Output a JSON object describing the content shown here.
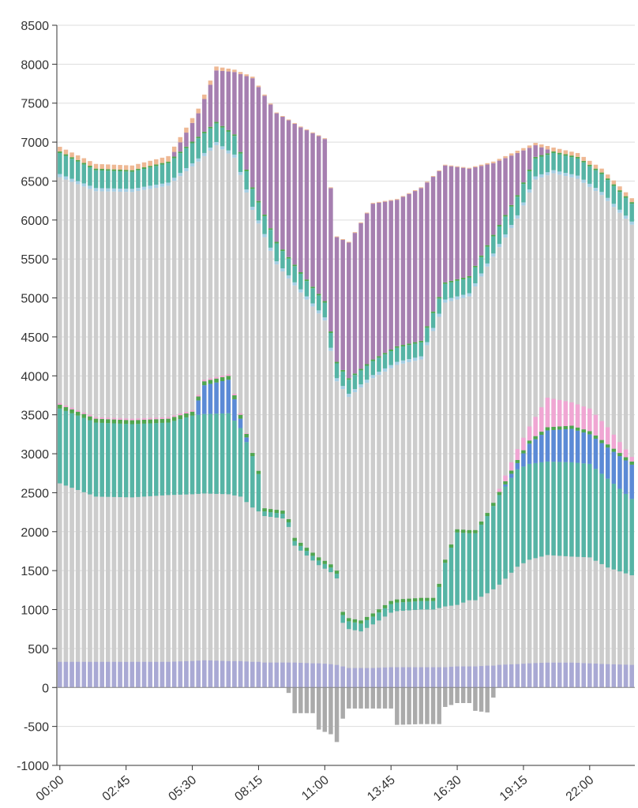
{
  "chart_data": [
    {
      "type": "bar",
      "stacked": true,
      "ylim": [
        -1000,
        8500
      ],
      "yticks": [
        -1000,
        -500,
        0,
        500,
        1000,
        1500,
        2000,
        2500,
        3000,
        3500,
        4000,
        4500,
        5000,
        5500,
        6000,
        6500,
        7000,
        7500,
        8000,
        8500
      ],
      "xtick_labels": [
        "00:00",
        "02:45",
        "05:30",
        "08:15",
        "11:00",
        "13:45",
        "16:30",
        "19:15",
        "22:00"
      ],
      "xtick_every": 11,
      "bar_count": 96,
      "grid": true,
      "legend": "none",
      "colors": {
        "base": "#a9a9d4",
        "gray": "#cccccc",
        "light_blue": "#a6cee3",
        "teal": "#56b4a5",
        "blue": "#5b8ad6",
        "green": "#4fa64f",
        "pink": "#f0a6d3",
        "purple": "#a67fb0",
        "peach": "#eeb894",
        "red": "#e3848c",
        "negative": "#aaaaaa"
      },
      "charts": [
        {
          "name": "upper-chart",
          "keyframes": [
            {
              "t": 0,
              "base": 320,
              "gray": 6230,
              "light_blue": 40,
              "teal": 270,
              "green": 20,
              "purple": 0,
              "peach": 60
            },
            {
              "t": 6,
              "base": 320,
              "gray": 6050,
              "light_blue": 40,
              "teal": 230,
              "green": 20,
              "purple": 0,
              "peach": 60
            },
            {
              "t": 12,
              "base": 330,
              "gray": 6030,
              "light_blue": 40,
              "teal": 220,
              "green": 20,
              "purple": 0,
              "peach": 60
            },
            {
              "t": 18,
              "base": 330,
              "gray": 6110,
              "light_blue": 40,
              "teal": 250,
              "green": 20,
              "purple": 0,
              "peach": 70
            },
            {
              "t": 23,
              "base": 350,
              "gray": 6400,
              "light_blue": 40,
              "teal": 260,
              "green": 20,
              "purple": 300,
              "peach": 60
            },
            {
              "t": 26,
              "base": 340,
              "gray": 6620,
              "light_blue": 40,
              "teal": 240,
              "green": 20,
              "purple": 660,
              "peach": 50
            },
            {
              "t": 29,
              "base": 330,
              "gray": 6470,
              "light_blue": 40,
              "teal": 240,
              "green": 20,
              "purple": 800,
              "peach": 30
            },
            {
              "t": 32,
              "base": 330,
              "gray": 5800,
              "light_blue": 40,
              "teal": 230,
              "green": 20,
              "purple": 1400,
              "peach": 20
            },
            {
              "t": 36,
              "base": 330,
              "gray": 5100,
              "light_blue": 40,
              "teal": 230,
              "green": 20,
              "purple": 1650,
              "peach": 10
            },
            {
              "t": 40,
              "base": 320,
              "gray": 4750,
              "light_blue": 40,
              "teal": 200,
              "green": 20,
              "purple": 1860,
              "peach": 10
            },
            {
              "t": 44,
              "base": 310,
              "gray": 4400,
              "light_blue": 40,
              "teal": 190,
              "green": 20,
              "purple": 2080,
              "peach": 10
            },
            {
              "t": 46,
              "base": 280,
              "gray": 3650,
              "light_blue": 40,
              "teal": 190,
              "green": 20,
              "purple": 1600,
              "peach": 10
            },
            {
              "t": 48,
              "base": 260,
              "gray": 3470,
              "light_blue": 40,
              "teal": 180,
              "green": 20,
              "purple": 1740,
              "peach": 10
            },
            {
              "t": 52,
              "base": 270,
              "gray": 3700,
              "light_blue": 40,
              "teal": 180,
              "green": 20,
              "purple": 2000,
              "peach": 10
            },
            {
              "t": 56,
              "base": 280,
              "gray": 3860,
              "light_blue": 40,
              "teal": 180,
              "green": 20,
              "purple": 1880,
              "peach": 10
            },
            {
              "t": 60,
              "base": 290,
              "gray": 3920,
              "light_blue": 40,
              "teal": 180,
              "green": 20,
              "purple": 1960,
              "peach": 10
            },
            {
              "t": 64,
              "base": 300,
              "gray": 4640,
              "light_blue": 40,
              "teal": 200,
              "green": 20,
              "purple": 1500,
              "peach": 10
            },
            {
              "t": 68,
              "base": 300,
              "gray": 4720,
              "light_blue": 40,
              "teal": 200,
              "green": 20,
              "purple": 1380,
              "peach": 10
            },
            {
              "t": 72,
              "base": 300,
              "gray": 5230,
              "light_blue": 40,
              "teal": 220,
              "green": 20,
              "purple": 920,
              "peach": 20
            },
            {
              "t": 76,
              "base": 320,
              "gray": 5700,
              "light_blue": 40,
              "teal": 240,
              "green": 20,
              "purple": 540,
              "peach": 30
            },
            {
              "t": 79,
              "base": 320,
              "gray": 6200,
              "light_blue": 40,
              "teal": 230,
              "green": 20,
              "purple": 150,
              "peach": 30
            },
            {
              "t": 82,
              "base": 320,
              "gray": 6280,
              "light_blue": 40,
              "teal": 220,
              "green": 20,
              "purple": 0,
              "peach": 50
            },
            {
              "t": 86,
              "base": 320,
              "gray": 6210,
              "light_blue": 40,
              "teal": 220,
              "green": 20,
              "purple": 0,
              "peach": 50
            },
            {
              "t": 90,
              "base": 300,
              "gray": 6020,
              "light_blue": 40,
              "teal": 230,
              "green": 20,
              "purple": 0,
              "peach": 50
            },
            {
              "t": 95,
              "base": 300,
              "gray": 5640,
              "light_blue": 40,
              "teal": 230,
              "green": 20,
              "purple": 0,
              "peach": 50
            }
          ]
        },
        {
          "name": "lower-chart",
          "keyframes": [
            {
              "t": 0,
              "base": 330,
              "gray": 2290,
              "teal": 960,
              "blue": 0,
              "green": 50,
              "pink": 20,
              "negative": 0
            },
            {
              "t": 6,
              "base": 330,
              "gray": 2120,
              "teal": 950,
              "blue": 0,
              "green": 50,
              "pink": 20,
              "negative": 0
            },
            {
              "t": 12,
              "base": 330,
              "gray": 2110,
              "teal": 940,
              "blue": 0,
              "green": 50,
              "pink": 20,
              "negative": 0
            },
            {
              "t": 18,
              "base": 330,
              "gray": 2140,
              "teal": 930,
              "blue": 0,
              "green": 50,
              "pink": 20,
              "negative": 0
            },
            {
              "t": 22,
              "base": 340,
              "gray": 2140,
              "teal": 1010,
              "blue": 0,
              "green": 50,
              "pink": 20,
              "negative": 0
            },
            {
              "t": 24,
              "base": 350,
              "gray": 2140,
              "teal": 1020,
              "blue": 370,
              "green": 50,
              "pink": 20,
              "negative": 0
            },
            {
              "t": 28,
              "base": 340,
              "gray": 2140,
              "teal": 1040,
              "blue": 430,
              "green": 50,
              "pink": 20,
              "negative": 0
            },
            {
              "t": 30,
              "base": 340,
              "gray": 2110,
              "teal": 880,
              "blue": 120,
              "green": 50,
              "pink": 20,
              "negative": 0
            },
            {
              "t": 32,
              "base": 330,
              "gray": 1980,
              "teal": 660,
              "blue": 0,
              "green": 40,
              "pink": 0,
              "negative": 0
            },
            {
              "t": 33,
              "base": 330,
              "gray": 1930,
              "teal": 480,
              "blue": 0,
              "green": 40,
              "pink": 0,
              "negative": 0
            },
            {
              "t": 34,
              "base": 320,
              "gray": 1880,
              "teal": 60,
              "blue": 0,
              "green": 40,
              "pink": 0,
              "negative": 0
            },
            {
              "t": 37,
              "base": 320,
              "gray": 1850,
              "teal": 60,
              "blue": 0,
              "green": 40,
              "pink": 0,
              "negative": 0
            },
            {
              "t": 38,
              "base": 320,
              "gray": 1740,
              "teal": 60,
              "blue": 0,
              "green": 40,
              "pink": 0,
              "negative": -70
            },
            {
              "t": 39,
              "base": 320,
              "gray": 1500,
              "teal": 60,
              "blue": 0,
              "green": 40,
              "pink": 0,
              "negative": -330
            },
            {
              "t": 42,
              "base": 310,
              "gray": 1320,
              "teal": 60,
              "blue": 0,
              "green": 40,
              "pink": 0,
              "negative": -330
            },
            {
              "t": 43,
              "base": 310,
              "gray": 1260,
              "teal": 60,
              "blue": 0,
              "green": 40,
              "pink": 0,
              "negative": -540
            },
            {
              "t": 45,
              "base": 300,
              "gray": 1180,
              "teal": 60,
              "blue": 0,
              "green": 40,
              "pink": 0,
              "negative": -600
            },
            {
              "t": 46,
              "base": 290,
              "gray": 1110,
              "teal": 60,
              "blue": 0,
              "green": 40,
              "pink": 0,
              "negative": -700
            },
            {
              "t": 47,
              "base": 270,
              "gray": 560,
              "teal": 100,
              "blue": 0,
              "green": 40,
              "pink": 0,
              "negative": -400
            },
            {
              "t": 48,
              "base": 250,
              "gray": 500,
              "teal": 100,
              "blue": 0,
              "green": 40,
              "pink": 0,
              "negative": -270
            },
            {
              "t": 50,
              "base": 250,
              "gray": 470,
              "teal": 100,
              "blue": 0,
              "green": 40,
              "pink": 0,
              "negative": -270
            },
            {
              "t": 52,
              "base": 250,
              "gray": 560,
              "teal": 100,
              "blue": 0,
              "green": 40,
              "pink": 0,
              "negative": -270
            },
            {
              "t": 55,
              "base": 260,
              "gray": 700,
              "teal": 110,
              "blue": 0,
              "green": 40,
              "pink": 0,
              "negative": -270
            },
            {
              "t": 56,
              "base": 260,
              "gray": 720,
              "teal": 110,
              "blue": 0,
              "green": 40,
              "pink": 0,
              "negative": -480
            },
            {
              "t": 60,
              "base": 260,
              "gray": 740,
              "teal": 110,
              "blue": 0,
              "green": 40,
              "pink": 0,
              "negative": -470
            },
            {
              "t": 62,
              "base": 260,
              "gray": 740,
              "teal": 110,
              "blue": 0,
              "green": 40,
              "pink": 0,
              "negative": -470
            },
            {
              "t": 63,
              "base": 260,
              "gray": 760,
              "teal": 270,
              "blue": 0,
              "green": 40,
              "pink": 0,
              "negative": -470
            },
            {
              "t": 64,
              "base": 260,
              "gray": 780,
              "teal": 560,
              "blue": 0,
              "green": 40,
              "pink": 0,
              "negative": -250
            },
            {
              "t": 66,
              "base": 270,
              "gray": 790,
              "teal": 930,
              "blue": 0,
              "green": 40,
              "pink": 0,
              "negative": -200
            },
            {
              "t": 68,
              "base": 270,
              "gray": 850,
              "teal": 860,
              "blue": 0,
              "green": 40,
              "pink": 0,
              "negative": -200
            },
            {
              "t": 69,
              "base": 270,
              "gray": 850,
              "teal": 860,
              "blue": 0,
              "green": 40,
              "pink": 0,
              "negative": -300
            },
            {
              "t": 71,
              "base": 280,
              "gray": 930,
              "teal": 990,
              "blue": 0,
              "green": 40,
              "pink": 0,
              "negative": -320
            },
            {
              "t": 72,
              "base": 280,
              "gray": 980,
              "teal": 1070,
              "blue": 0,
              "green": 40,
              "pink": 0,
              "negative": -130
            },
            {
              "t": 73,
              "base": 290,
              "gray": 1030,
              "teal": 1150,
              "blue": 0,
              "green": 40,
              "pink": 40,
              "negative": 0
            },
            {
              "t": 76,
              "base": 300,
              "gray": 1250,
              "teal": 1250,
              "blue": 80,
              "green": 40,
              "pink": 140,
              "negative": 0
            },
            {
              "t": 78,
              "base": 310,
              "gray": 1330,
              "teal": 1230,
              "blue": 260,
              "green": 40,
              "pink": 180,
              "negative": 0
            },
            {
              "t": 81,
              "base": 320,
              "gray": 1380,
              "teal": 1200,
              "blue": 400,
              "green": 40,
              "pink": 380,
              "negative": 0
            },
            {
              "t": 85,
              "base": 320,
              "gray": 1360,
              "teal": 1210,
              "blue": 430,
              "green": 40,
              "pink": 300,
              "negative": 0
            },
            {
              "t": 88,
              "base": 310,
              "gray": 1360,
              "teal": 1200,
              "blue": 380,
              "green": 40,
              "pink": 290,
              "negative": 0
            },
            {
              "t": 91,
              "base": 300,
              "gray": 1240,
              "teal": 1140,
              "blue": 400,
              "green": 40,
              "pink": 220,
              "negative": 0
            },
            {
              "t": 95,
              "base": 290,
              "gray": 1150,
              "teal": 980,
              "blue": 440,
              "green": 40,
              "pink": 60,
              "negative": 0
            }
          ]
        }
      ]
    }
  ]
}
